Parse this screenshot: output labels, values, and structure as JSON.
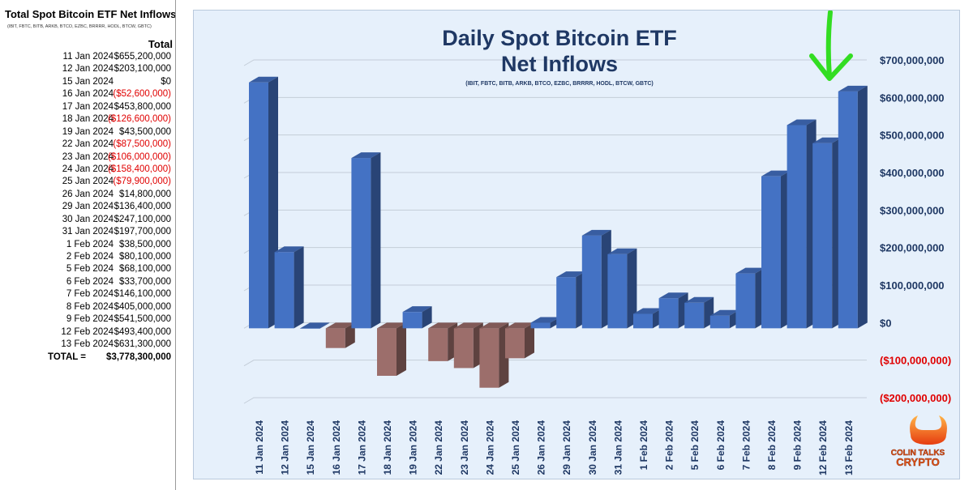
{
  "table": {
    "title": "Total Spot Bitcoin ETF Net Inflows",
    "subtitle": "(IBIT, FBTC, BITB, ARKB, BTCO, EZBC, BRRRR, HODL, BTCW, GBTC)",
    "column_header": "Total",
    "rows": [
      {
        "date": "11 Jan 2024",
        "value": "$655,200,000",
        "negative": false
      },
      {
        "date": "12 Jan 2024",
        "value": "$203,100,000",
        "negative": false
      },
      {
        "date": "15 Jan 2024",
        "value": "$0",
        "negative": false
      },
      {
        "date": "16 Jan 2024",
        "value": "($52,600,000)",
        "negative": true
      },
      {
        "date": "17 Jan 2024",
        "value": "$453,800,000",
        "negative": false
      },
      {
        "date": "18 Jan 2024",
        "value": "($126,600,000)",
        "negative": true
      },
      {
        "date": "19 Jan 2024",
        "value": "$43,500,000",
        "negative": false
      },
      {
        "date": "22 Jan 2024",
        "value": "($87,500,000)",
        "negative": true
      },
      {
        "date": "23 Jan 2024",
        "value": "($106,000,000)",
        "negative": true
      },
      {
        "date": "24 Jan 2024",
        "value": "($158,400,000)",
        "negative": true
      },
      {
        "date": "25 Jan 2024",
        "value": "($79,900,000)",
        "negative": true
      },
      {
        "date": "26 Jan 2024",
        "value": "$14,800,000",
        "negative": false
      },
      {
        "date": "29 Jan 2024",
        "value": "$136,400,000",
        "negative": false
      },
      {
        "date": "30 Jan 2024",
        "value": "$247,100,000",
        "negative": false
      },
      {
        "date": "31 Jan 2024",
        "value": "$197,700,000",
        "negative": false
      },
      {
        "date": "1 Feb 2024",
        "value": "$38,500,000",
        "negative": false
      },
      {
        "date": "2 Feb 2024",
        "value": "$80,100,000",
        "negative": false
      },
      {
        "date": "5 Feb 2024",
        "value": "$68,100,000",
        "negative": false
      },
      {
        "date": "6 Feb 2024",
        "value": "$33,700,000",
        "negative": false
      },
      {
        "date": "7 Feb 2024",
        "value": "$146,100,000",
        "negative": false
      },
      {
        "date": "8 Feb 2024",
        "value": "$405,000,000",
        "negative": false
      },
      {
        "date": "9 Feb 2024",
        "value": "$541,500,000",
        "negative": false
      },
      {
        "date": "12 Feb 2024",
        "value": "$493,400,000",
        "negative": false
      },
      {
        "date": "13 Feb 2024",
        "value": "$631,300,000",
        "negative": false
      }
    ],
    "total_label": "TOTAL =",
    "total_value": "$3,778,300,000"
  },
  "logo": {
    "line1": "COLIN TALKS",
    "line2": "CRYPTO"
  },
  "colors": {
    "positive_bar": "#4472c4",
    "negative_bar": "#9c6e6b",
    "negative_text": "#e00000",
    "title": "#1f3864",
    "arrow": "#33dd22"
  },
  "annotation": {
    "type": "arrow-down",
    "target_category": "13 Feb 2024"
  },
  "chart_data": {
    "type": "bar",
    "style": "3d-column",
    "title": "Daily Spot Bitcoin ETF",
    "title_line2": "Net Inflows",
    "subtitle": "(IBIT, FBTC, BITB, ARKB, BTCO, EZBC, BRRRR, HODL, BTCW, GBTC)",
    "categories": [
      "11 Jan 2024",
      "12 Jan 2024",
      "15 Jan 2024",
      "16 Jan 2024",
      "17 Jan 2024",
      "18 Jan 2024",
      "19 Jan 2024",
      "22 Jan 2024",
      "23 Jan 2024",
      "24 Jan 2024",
      "25 Jan 2024",
      "26 Jan 2024",
      "29 Jan 2024",
      "30 Jan 2024",
      "31 Jan 2024",
      "1 Feb 2024",
      "2 Feb 2024",
      "5 Feb 2024",
      "6 Feb 2024",
      "7 Feb 2024",
      "8 Feb 2024",
      "9 Feb 2024",
      "12 Feb 2024",
      "13 Feb 2024"
    ],
    "values": [
      655200000,
      203100000,
      0,
      -52600000,
      453800000,
      -126600000,
      43500000,
      -87500000,
      -106000000,
      -158400000,
      -79900000,
      14800000,
      136400000,
      247100000,
      197700000,
      38500000,
      80100000,
      68100000,
      33700000,
      146100000,
      405000000,
      541500000,
      493400000,
      631300000
    ],
    "ylim": [
      -200000000,
      700000000
    ],
    "yticks": [
      700000000,
      600000000,
      500000000,
      400000000,
      300000000,
      200000000,
      100000000,
      0,
      -100000000,
      -200000000
    ],
    "ytick_labels": [
      "$700,000,000",
      "$600,000,000",
      "$500,000,000",
      "$400,000,000",
      "$300,000,000",
      "$200,000,000",
      "$100,000,000",
      "$0",
      "($100,000,000)",
      "($200,000,000)"
    ],
    "axis_position": "right",
    "grid": true,
    "legend": "none"
  }
}
